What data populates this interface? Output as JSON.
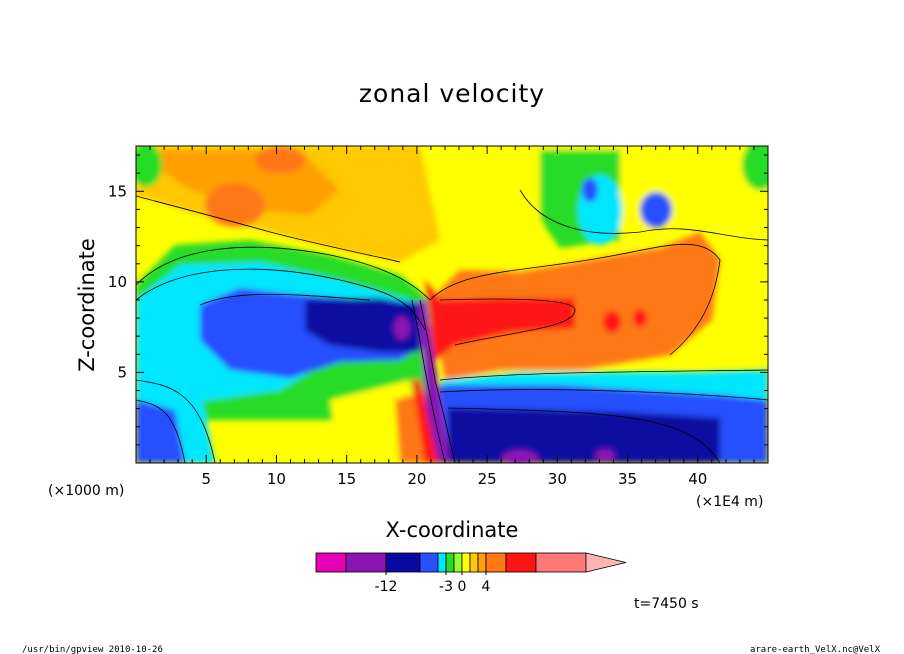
{
  "chart_data": {
    "type": "heatmap",
    "title": "zonal velocity",
    "xlabel": "X-coordinate",
    "ylabel": "Z-coordinate",
    "x_scale_label": "(×1E4 m)",
    "y_scale_label": "(×1000 m)",
    "x_range": [
      0,
      45
    ],
    "y_range": [
      0,
      17.5
    ],
    "x_ticks": [
      "5",
      "10",
      "15",
      "20",
      "25",
      "30",
      "35",
      "40"
    ],
    "y_ticks": [
      "5",
      "10",
      "15"
    ],
    "x_tick_values": [
      5,
      10,
      15,
      20,
      25,
      30,
      35,
      40
    ],
    "y_tick_values": [
      5,
      10,
      15
    ],
    "colorbar": {
      "tick_labels": [
        "-12",
        "-3",
        "0",
        "4"
      ],
      "tick_values": [
        -12,
        -3,
        0,
        4
      ],
      "colors": [
        "#e600b4",
        "#8a14b4",
        "#0a0aa0",
        "#2850ff",
        "#00e6ff",
        "#28dc28",
        "#96ff28",
        "#ffff00",
        "#ffc800",
        "#ffa000",
        "#ff7814",
        "#ff1414",
        "#ff7878",
        "#ffb4b4"
      ]
    },
    "annotation": "t=7450 s"
  },
  "footer": {
    "left": "/usr/bin/gpview  2010-10-26",
    "right": "arare-earth_VelX.nc@VelX"
  }
}
